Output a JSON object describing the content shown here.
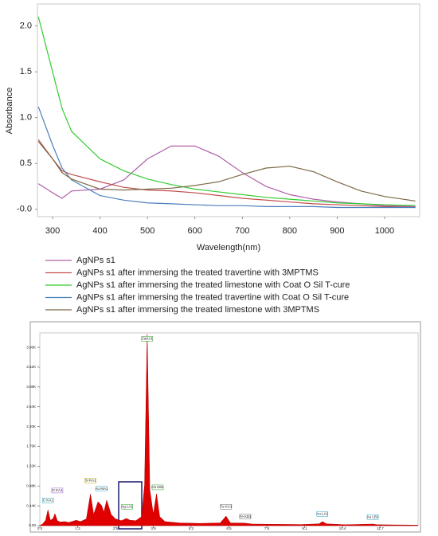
{
  "chart_data": [
    {
      "type": "line",
      "xlabel": "Wavelength(nm)",
      "ylabel": "Absorbance",
      "x": [
        270,
        300,
        320,
        340,
        400,
        450,
        500,
        550,
        600,
        650,
        700,
        750,
        800,
        850,
        900,
        950,
        1000,
        1065
      ],
      "series": [
        {
          "name": "AgNPs s1",
          "color": "#b060a8",
          "values": [
            0.28,
            0.18,
            0.12,
            0.2,
            0.22,
            0.32,
            0.55,
            0.69,
            0.69,
            0.58,
            0.4,
            0.25,
            0.16,
            0.11,
            0.08,
            0.06,
            0.04,
            0.03
          ]
        },
        {
          "name": "AgNPs s1 after immersing the treated travertine with 3MPTMS",
          "color": "#c0504d",
          "values": [
            0.76,
            0.55,
            0.42,
            0.38,
            0.3,
            0.24,
            0.21,
            0.2,
            0.18,
            0.15,
            0.12,
            0.1,
            0.08,
            0.06,
            0.05,
            0.04,
            0.03,
            0.02
          ]
        },
        {
          "name": "AgNPs s1 after immersing the treated limestone with Coat O Sil T-cure",
          "color": "#33cc33",
          "values": [
            2.1,
            1.5,
            1.1,
            0.85,
            0.55,
            0.42,
            0.33,
            0.27,
            0.22,
            0.19,
            0.16,
            0.13,
            0.11,
            0.09,
            0.07,
            0.06,
            0.05,
            0.04
          ]
        },
        {
          "name": "AgNPs s1 after immersing the treated travertine with Coat O Sil T-cure",
          "color": "#4a7ebb",
          "values": [
            1.12,
            0.7,
            0.45,
            0.32,
            0.15,
            0.1,
            0.07,
            0.06,
            0.05,
            0.04,
            0.04,
            0.03,
            0.03,
            0.03,
            0.02,
            0.02,
            0.02,
            0.02
          ]
        },
        {
          "name": "AgNPs s1 after immersing the treated limestone with 3MPTMS",
          "color": "#7d6a45",
          "values": [
            0.74,
            0.55,
            0.4,
            0.33,
            0.22,
            0.21,
            0.22,
            0.23,
            0.26,
            0.3,
            0.38,
            0.45,
            0.47,
            0.41,
            0.3,
            0.2,
            0.14,
            0.09
          ]
        }
      ],
      "xlim": [
        268,
        1074
      ],
      "xticks": [
        300,
        400,
        500,
        600,
        700,
        800,
        900,
        1000
      ],
      "ylim": [
        -0.08,
        2.24
      ],
      "yticks": [
        {
          "value": 0,
          "label": "-0.0"
        },
        {
          "value": 0.5,
          "label": "0.5"
        },
        {
          "value": 1,
          "label": "1.0"
        },
        {
          "value": 1.5,
          "label": "1.5"
        },
        {
          "value": 2,
          "label": "2.0"
        }
      ]
    },
    {
      "type": "area",
      "color": "#e00000",
      "x": [
        0,
        0.1,
        0.2,
        0.28,
        0.36,
        0.45,
        0.52,
        0.6,
        0.7,
        0.85,
        1.0,
        1.25,
        1.4,
        1.6,
        1.74,
        1.85,
        2.0,
        2.12,
        2.2,
        2.3,
        2.45,
        2.6,
        2.8,
        2.98,
        3.1,
        3.3,
        3.5,
        3.6,
        3.69,
        3.78,
        3.9,
        4.01,
        4.12,
        4.3,
        4.8,
        5.5,
        6.2,
        6.4,
        6.55,
        7.06,
        7.3,
        8.0,
        9.0,
        9.6,
        9.71,
        9.85,
        10.5,
        11.44,
        11.6,
        12.5,
        13
      ],
      "values": [
        0,
        40,
        120,
        350,
        120,
        150,
        265,
        110,
        80,
        90,
        70,
        120,
        90,
        150,
        700,
        250,
        530,
        450,
        300,
        565,
        250,
        150,
        110,
        160,
        120,
        110,
        200,
        900,
        4250,
        800,
        250,
        707,
        200,
        90,
        60,
        50,
        60,
        212,
        60,
        55,
        35,
        30,
        25,
        40,
        90,
        40,
        20,
        35,
        20,
        15,
        10
      ],
      "xlim": [
        0,
        13
      ],
      "xticks": [
        {
          "value": 0,
          "label": "0.0"
        },
        1.3,
        2.6,
        3.9,
        5.2,
        6.5,
        7.8,
        9.1,
        10.4,
        11.7
      ],
      "ylim": [
        0,
        4280
      ],
      "yticks": [
        {
          "value": 0,
          "label": "0.00"
        },
        {
          "value": 440,
          "label": "0.44K"
        },
        {
          "value": 880,
          "label": "0.88K"
        },
        {
          "value": 1320,
          "label": "1.32K"
        },
        {
          "value": 1760,
          "label": "1.76K"
        },
        {
          "value": 2200,
          "label": "2.20K"
        },
        {
          "value": 2640,
          "label": "2.64K"
        },
        {
          "value": 3080,
          "label": "3.08K"
        },
        {
          "value": 3520,
          "label": "3.52K"
        },
        {
          "value": 3960,
          "label": "3.96K"
        }
      ],
      "annotations": [
        {
          "text": "CaKA1",
          "x": 3.69,
          "y": 4150,
          "color": "#2a9d2a"
        },
        {
          "text": "Ca KB1",
          "x": 4.05,
          "y": 850,
          "color": "#2a9d2a"
        },
        {
          "text": "Fe KA1",
          "x": 6.4,
          "y": 420,
          "color": "#666666"
        },
        {
          "text": "Fe KB1",
          "x": 7.06,
          "y": 200,
          "color": "#666666"
        },
        {
          "text": "Au LA1",
          "x": 9.71,
          "y": 260,
          "color": "#22aacc"
        },
        {
          "text": "Au LB1",
          "x": 11.44,
          "y": 190,
          "color": "#22aacc"
        },
        {
          "text": "O KA1",
          "x": 0.6,
          "y": 780,
          "color": "#9955cc"
        },
        {
          "text": "C KA1",
          "x": 0.28,
          "y": 560,
          "color": "#22aacc"
        },
        {
          "text": "Si KA1",
          "x": 1.74,
          "y": 1000,
          "color": "#ccaa00"
        },
        {
          "text": "Au MA1",
          "x": 2.12,
          "y": 820,
          "color": "#22aacc"
        },
        {
          "text": "Ag LA1",
          "x": 3.0,
          "y": 420,
          "color": "#2a9d2a"
        }
      ]
    }
  ]
}
